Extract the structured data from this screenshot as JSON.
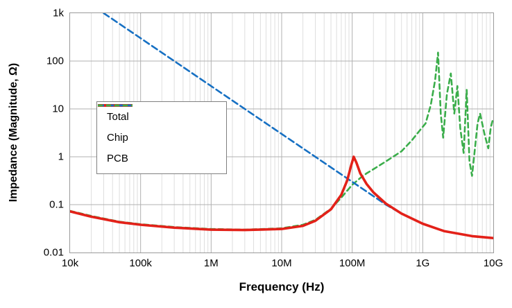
{
  "chart_data": {
    "type": "line",
    "title": "",
    "xlabel": "Frequency (Hz)",
    "ylabel": "Impedance (Magnitude, Ω)",
    "x_scale": "log",
    "y_scale": "log",
    "xlim": [
      10000,
      10000000000
    ],
    "ylim": [
      0.01,
      1000
    ],
    "grid": {
      "major_color": "#b0b0b0",
      "minor_color": "#dedede",
      "minor_x": true,
      "minor_y": false
    },
    "legend_position": "upper-left-inside",
    "x_ticks": [
      {
        "label": "10k",
        "value": 10000
      },
      {
        "label": "100k",
        "value": 100000
      },
      {
        "label": "1M",
        "value": 1000000
      },
      {
        "label": "10M",
        "value": 10000000
      },
      {
        "label": "100M",
        "value": 100000000
      },
      {
        "label": "1G",
        "value": 1000000000
      },
      {
        "label": "10G",
        "value": 10000000000
      }
    ],
    "y_ticks": [
      {
        "label": "0.01",
        "value": 0.01
      },
      {
        "label": "0.1",
        "value": 0.1
      },
      {
        "label": "1",
        "value": 1
      },
      {
        "label": "10",
        "value": 10
      },
      {
        "label": "100",
        "value": 100
      },
      {
        "label": "1k",
        "value": 1000
      }
    ],
    "series": [
      {
        "name": "Total",
        "color": "#e32119",
        "dash": "",
        "width": 3.6,
        "points": [
          [
            10000,
            0.072
          ],
          [
            20000,
            0.056
          ],
          [
            50000,
            0.043
          ],
          [
            100000,
            0.038
          ],
          [
            300000,
            0.033
          ],
          [
            1000000,
            0.03
          ],
          [
            3000000,
            0.0295
          ],
          [
            10000000,
            0.031
          ],
          [
            20000000,
            0.036
          ],
          [
            30000000,
            0.046
          ],
          [
            50000000,
            0.08
          ],
          [
            70000000,
            0.16
          ],
          [
            85000000,
            0.32
          ],
          [
            95000000,
            0.6
          ],
          [
            105000000,
            1.0
          ],
          [
            115000000,
            0.75
          ],
          [
            130000000,
            0.45
          ],
          [
            160000000,
            0.27
          ],
          [
            200000000,
            0.18
          ],
          [
            300000000,
            0.105
          ],
          [
            500000000,
            0.065
          ],
          [
            1000000000,
            0.04
          ],
          [
            2000000000,
            0.028
          ],
          [
            5000000000,
            0.022
          ],
          [
            10000000000,
            0.02
          ]
        ]
      },
      {
        "name": "Chip",
        "color": "#1670c3",
        "dash": "9 5",
        "width": 2.6,
        "points": [
          [
            30000,
            1000
          ],
          [
            100000,
            300
          ],
          [
            1000000,
            30
          ],
          [
            10000000,
            3
          ],
          [
            100000000,
            0.3
          ],
          [
            200000000,
            0.15
          ],
          [
            300000000,
            0.1
          ],
          [
            500000000,
            0.065
          ],
          [
            1000000000,
            0.04
          ],
          [
            2000000000,
            0.028
          ],
          [
            5000000000,
            0.022
          ],
          [
            10000000000,
            0.02
          ]
        ]
      },
      {
        "name": "PCB",
        "color": "#3aad4a",
        "dash": "7 5",
        "width": 2.6,
        "points": [
          [
            10000,
            0.074
          ],
          [
            20000,
            0.058
          ],
          [
            50000,
            0.044
          ],
          [
            100000,
            0.039
          ],
          [
            300000,
            0.034
          ],
          [
            1000000,
            0.031
          ],
          [
            3000000,
            0.03
          ],
          [
            10000000,
            0.032
          ],
          [
            20000000,
            0.038
          ],
          [
            30000000,
            0.048
          ],
          [
            50000000,
            0.082
          ],
          [
            70000000,
            0.14
          ],
          [
            100000000,
            0.26
          ],
          [
            130000000,
            0.36
          ],
          [
            160000000,
            0.45
          ],
          [
            200000000,
            0.55
          ],
          [
            300000000,
            0.8
          ],
          [
            500000000,
            1.3
          ],
          [
            700000000,
            2.2
          ],
          [
            900000000,
            3.5
          ],
          [
            1100000000,
            5
          ],
          [
            1300000000,
            12
          ],
          [
            1500000000,
            40
          ],
          [
            1650000000,
            150
          ],
          [
            1800000000,
            8
          ],
          [
            1950000000,
            2.5
          ],
          [
            2200000000,
            20
          ],
          [
            2500000000,
            55
          ],
          [
            2800000000,
            8
          ],
          [
            3100000000,
            30
          ],
          [
            3400000000,
            4
          ],
          [
            3800000000,
            1.2
          ],
          [
            4200000000,
            25
          ],
          [
            4600000000,
            0.8
          ],
          [
            5000000000,
            0.4
          ],
          [
            5500000000,
            1.5
          ],
          [
            6000000000,
            5
          ],
          [
            6500000000,
            8
          ],
          [
            7500000000,
            3
          ],
          [
            8500000000,
            1.5
          ],
          [
            9200000000,
            4
          ],
          [
            10000000000,
            6.5
          ]
        ]
      }
    ]
  }
}
